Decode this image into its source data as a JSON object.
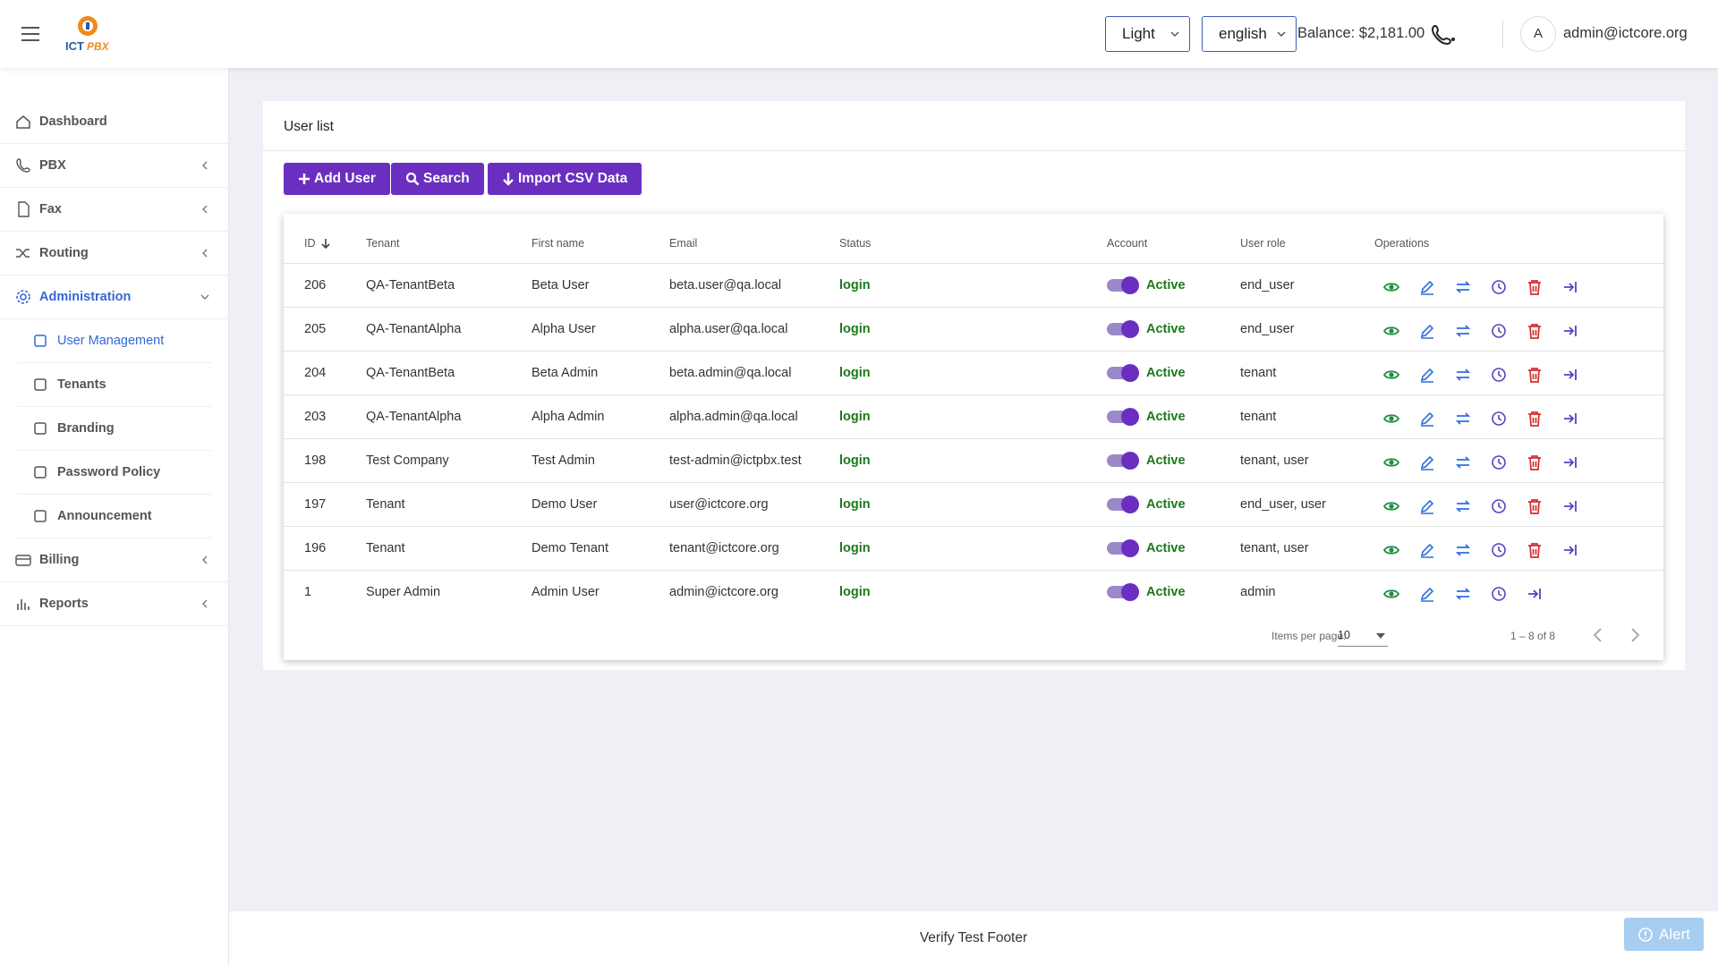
{
  "header": {
    "logo_primary": "ICT",
    "logo_secondary": "PBX",
    "theme": "Light",
    "language": "english",
    "balance": "Balance: $2,181.00",
    "avatar": "A",
    "user": "admin@ictcore.org"
  },
  "sidebar": {
    "items": [
      {
        "label": "Dashboard"
      },
      {
        "label": "PBX"
      },
      {
        "label": "Fax"
      },
      {
        "label": "Routing"
      },
      {
        "label": "Administration",
        "children": [
          "User Management",
          "Tenants",
          "Branding",
          "Password Policy",
          "Announcement"
        ]
      },
      {
        "label": "Billing"
      },
      {
        "label": "Reports"
      }
    ]
  },
  "card": {
    "title": "User list",
    "buttons": [
      "Add User",
      "Search",
      "Import CSV Data"
    ]
  },
  "table": {
    "columns": [
      "ID",
      "Tenant",
      "First name",
      "Email",
      "Status",
      "Account",
      "User role",
      "Operations"
    ],
    "rows": [
      [
        "206",
        "QA-TenantBeta",
        "Beta User",
        "beta.user@qa.local",
        "login",
        "Active",
        "end_user"
      ],
      [
        "205",
        "QA-TenantAlpha",
        "Alpha User",
        "alpha.user@qa.local",
        "login",
        "Active",
        "end_user"
      ],
      [
        "204",
        "QA-TenantBeta",
        "Beta Admin",
        "beta.admin@qa.local",
        "login",
        "Active",
        "tenant"
      ],
      [
        "203",
        "QA-TenantAlpha",
        "Alpha Admin",
        "alpha.admin@qa.local",
        "login",
        "Active",
        "tenant"
      ],
      [
        "198",
        "Test Company",
        "Test Admin",
        "test-admin@ictpbx.test",
        "login",
        "Active",
        "tenant, user"
      ],
      [
        "197",
        "Tenant",
        "Demo User",
        "user@ictcore.org",
        "login",
        "Active",
        "end_user, user"
      ],
      [
        "196",
        "Tenant",
        "Demo Tenant",
        "tenant@ictcore.org",
        "login",
        "Active",
        "tenant, user"
      ],
      [
        "1",
        "Super Admin",
        "Admin User",
        "admin@ictcore.org",
        "login",
        "Active",
        "admin"
      ]
    ]
  },
  "paginator": {
    "items_per_page_label": "Items per page:",
    "items_per_page": "10",
    "range": "1 – 8 of 8"
  },
  "footer": {
    "text": "Verify Test Footer",
    "alert": "Alert"
  }
}
